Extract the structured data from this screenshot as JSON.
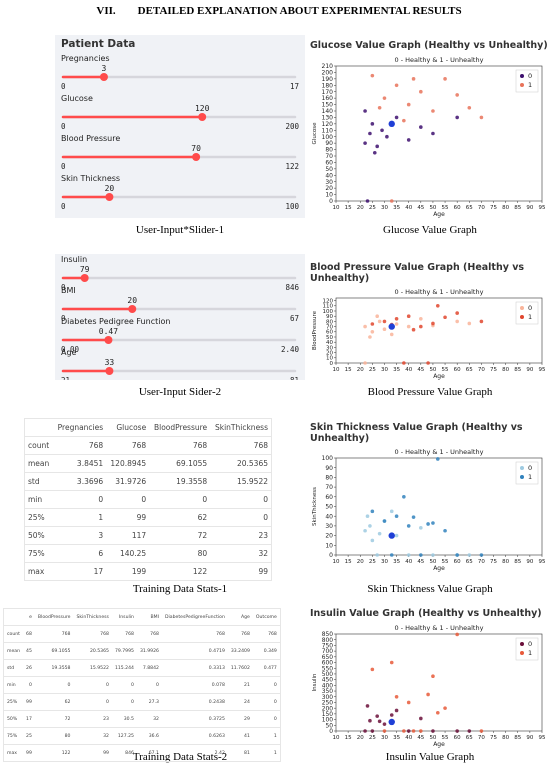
{
  "heading": {
    "number": "VII.",
    "text": "DETAILED EXPLANATION ABOUT EXPERIMENTAL RESULTS"
  },
  "captions": [
    "User-Input*Slider-1",
    "Glucose Value Graph",
    "User-Input Sider-2",
    "Blood Pressure Value Graph",
    "Training Data Stats-1",
    "Skin Thickness Value Graph",
    "Training  Data Stats-2",
    "Insulin Value Graph"
  ],
  "slider_panels": [
    {
      "title": "Patient Data",
      "sliders": [
        {
          "label": "Pregnancies",
          "value": 3,
          "min": 0,
          "max": 17
        },
        {
          "label": "Glucose",
          "value": 120,
          "min": 0,
          "max": 200
        },
        {
          "label": "Blood Pressure",
          "value": 70,
          "min": 0,
          "max": 122
        },
        {
          "label": "Skin Thickness",
          "value": 20,
          "min": 0,
          "max": 100
        }
      ]
    },
    {
      "sliders": [
        {
          "label": "Insulin",
          "value": 79,
          "min": 0,
          "max": 846
        },
        {
          "label": "BMI",
          "value": 20,
          "min": 0,
          "max": 67
        },
        {
          "label": "Diabetes Pedigree Function",
          "value": 0.47,
          "min": {
            "value": 0,
            "label": "0.00"
          },
          "max": {
            "value": 2.4,
            "label": "2.40"
          }
        },
        {
          "label": "Age",
          "value": 33,
          "min": 21,
          "max": 81
        }
      ]
    }
  ],
  "tables": [
    {
      "header": [
        "",
        "Pregnancies",
        "Glucose",
        "BloodPressure",
        "SkinThickness"
      ],
      "rows": [
        [
          "count",
          768,
          768,
          768,
          768
        ],
        [
          "mean",
          3.8451,
          120.8945,
          69.1055,
          20.5365
        ],
        [
          "std",
          3.3696,
          31.9726,
          19.3558,
          15.9522
        ],
        [
          "min",
          0,
          0,
          0,
          0
        ],
        [
          "25%",
          1,
          99,
          62,
          0
        ],
        [
          "50%",
          3,
          117,
          72,
          23
        ],
        [
          "75%",
          6,
          140.25,
          80,
          32
        ],
        [
          "max",
          17,
          199,
          122,
          99
        ]
      ]
    },
    {
      "header": [
        "",
        "e",
        "BloodPressure",
        "SkinThickness",
        "Insulin",
        "BMI",
        "DiabetesPedigreeFunction",
        "Age",
        "Outcome"
      ],
      "rows": [
        [
          "count",
          "68",
          768,
          768,
          768,
          768,
          768,
          768,
          768
        ],
        [
          "mean",
          "45",
          69.1055,
          20.5365,
          79.7995,
          31.9926,
          0.4719,
          33.2409,
          0.349
        ],
        [
          "std",
          "26",
          19.3558,
          15.9522,
          115.244,
          7.8842,
          0.3313,
          11.7602,
          0.477
        ],
        [
          "min",
          "0",
          0,
          0,
          0,
          0,
          0.078,
          21,
          0
        ],
        [
          "25%",
          "99",
          62,
          0,
          0,
          27.3,
          0.2438,
          24,
          0
        ],
        [
          "50%",
          "17",
          72,
          23,
          30.5,
          32,
          0.3725,
          29,
          0
        ],
        [
          "75%",
          "25",
          80,
          32,
          127.25,
          36.6,
          0.6263,
          41,
          1
        ],
        [
          "max",
          "99",
          122,
          99,
          846,
          67.1,
          2.42,
          81,
          1
        ]
      ]
    }
  ],
  "chart_data": [
    {
      "type": "scatter",
      "title": "Glucose Value Graph (Healthy vs Unhealthy)",
      "subtitle": "0 - Healthy & 1 - Unhealthy",
      "x_label": "Age",
      "y_label": "Glucose",
      "xlim": [
        10,
        95
      ],
      "xticks": [
        10,
        15,
        20,
        25,
        30,
        35,
        40,
        45,
        50,
        55,
        60,
        65,
        70,
        75,
        80,
        85,
        90,
        95
      ],
      "ylim": [
        0,
        210
      ],
      "yticks": [
        0,
        10,
        20,
        30,
        40,
        50,
        60,
        70,
        80,
        90,
        100,
        110,
        120,
        130,
        140,
        150,
        160,
        170,
        180,
        190,
        200,
        210
      ],
      "legend": "upper right",
      "input_point": {
        "x": 33,
        "y": 120,
        "color": "#1f3fd6"
      },
      "series": [
        {
          "name": "0",
          "color": "#3d0f6e",
          "x": [
            22,
            24,
            25,
            27,
            29,
            31,
            35,
            40,
            45,
            22,
            26,
            50,
            60,
            23
          ],
          "values": [
            90,
            105,
            120,
            85,
            110,
            100,
            130,
            95,
            115,
            140,
            75,
            105,
            130,
            0
          ]
        },
        {
          "name": "1",
          "color": "#e8735a",
          "x": [
            30,
            35,
            40,
            45,
            50,
            55,
            25,
            38,
            60,
            65,
            28,
            42,
            33,
            70
          ],
          "values": [
            160,
            180,
            150,
            170,
            140,
            190,
            195,
            125,
            165,
            145,
            145,
            190,
            0,
            130
          ]
        }
      ]
    },
    {
      "type": "scatter",
      "title": "Blood Pressure Value Graph (Healthy vs Unhealthy)",
      "subtitle": "0 - Healthy & 1 - Unhealthy",
      "x_label": "Age",
      "y_label": "BloodPressure",
      "xlim": [
        10,
        95
      ],
      "xticks": [
        10,
        15,
        20,
        25,
        30,
        35,
        40,
        45,
        50,
        55,
        60,
        65,
        70,
        75,
        80,
        85,
        90,
        95
      ],
      "ylim": [
        0,
        125
      ],
      "yticks": [
        0,
        10,
        20,
        30,
        40,
        50,
        60,
        70,
        80,
        90,
        100,
        110,
        120
      ],
      "legend": "upper right",
      "input_point": {
        "x": 33,
        "y": 70,
        "color": "#1f3fd6"
      },
      "series": [
        {
          "name": "0",
          "color": "#f9b49a",
          "x": [
            22,
            25,
            28,
            30,
            24,
            35,
            40,
            45,
            50,
            22,
            60,
            27,
            33,
            65
          ],
          "values": [
            70,
            60,
            80,
            65,
            50,
            75,
            70,
            85,
            72,
            0,
            80,
            90,
            55,
            76
          ]
        },
        {
          "name": "1",
          "color": "#e0462e",
          "x": [
            30,
            35,
            40,
            45,
            50,
            55,
            25,
            38,
            60,
            52,
            42,
            33,
            48,
            70
          ],
          "values": [
            80,
            85,
            90,
            70,
            76,
            88,
            75,
            0,
            96,
            110,
            64,
            74,
            0,
            80
          ]
        }
      ]
    },
    {
      "type": "scatter",
      "title": "Skin Thickness Value Graph (Healthy vs Unhealthy)",
      "subtitle": "0 - Healthy & 1 - Unhealthy",
      "x_label": "Age",
      "y_label": "SkinThickness",
      "xlim": [
        10,
        95
      ],
      "xticks": [
        10,
        15,
        20,
        25,
        30,
        35,
        40,
        45,
        50,
        55,
        60,
        65,
        70,
        75,
        80,
        85,
        90,
        95
      ],
      "ylim": [
        0,
        100
      ],
      "yticks": [
        0,
        10,
        20,
        30,
        40,
        50,
        60,
        70,
        80,
        90,
        100
      ],
      "legend": "upper right",
      "input_point": {
        "x": 33,
        "y": 20,
        "color": "#1f3fd6"
      },
      "series": [
        {
          "name": "0",
          "color": "#9ecae1",
          "x": [
            22,
            24,
            27,
            30,
            25,
            35,
            40,
            45,
            50,
            23,
            28,
            60,
            33,
            65
          ],
          "values": [
            25,
            30,
            0,
            35,
            15,
            20,
            0,
            28,
            0,
            40,
            22,
            0,
            45,
            0
          ]
        },
        {
          "name": "1",
          "color": "#3182bd",
          "x": [
            30,
            35,
            40,
            45,
            50,
            55,
            25,
            38,
            60,
            52,
            42,
            33,
            48,
            70
          ],
          "values": [
            35,
            40,
            30,
            0,
            33,
            25,
            45,
            60,
            0,
            99,
            39,
            0,
            32,
            0
          ]
        }
      ]
    },
    {
      "type": "scatter",
      "title": "Insulin Value Graph (Healthy vs Unhealthy)",
      "subtitle": "0 - Healthy & 1 - Unhealthy",
      "x_label": "Age",
      "y_label": "Insulin",
      "xlim": [
        10,
        95
      ],
      "xticks": [
        10,
        15,
        20,
        25,
        30,
        35,
        40,
        45,
        50,
        55,
        60,
        65,
        70,
        75,
        80,
        85,
        90,
        95
      ],
      "ylim": [
        0,
        850
      ],
      "yticks": [
        0,
        50,
        100,
        150,
        200,
        250,
        300,
        350,
        400,
        450,
        500,
        550,
        600,
        650,
        700,
        750,
        800,
        850
      ],
      "legend": "upper right",
      "input_point": {
        "x": 33,
        "y": 79,
        "color": "#1f3fd6"
      },
      "series": [
        {
          "name": "0",
          "color": "#6b0f3a",
          "x": [
            22,
            24,
            27,
            30,
            25,
            35,
            40,
            45,
            50,
            23,
            28,
            60,
            33,
            65
          ],
          "values": [
            0,
            90,
            130,
            60,
            0,
            180,
            0,
            110,
            0,
            220,
            85,
            0,
            140,
            0
          ]
        },
        {
          "name": "1",
          "color": "#e85a3a",
          "x": [
            30,
            35,
            40,
            45,
            50,
            55,
            25,
            38,
            60,
            52,
            42,
            33,
            48,
            70
          ],
          "values": [
            0,
            300,
            250,
            0,
            480,
            200,
            540,
            0,
            846,
            160,
            0,
            600,
            320,
            0
          ]
        }
      ]
    }
  ]
}
